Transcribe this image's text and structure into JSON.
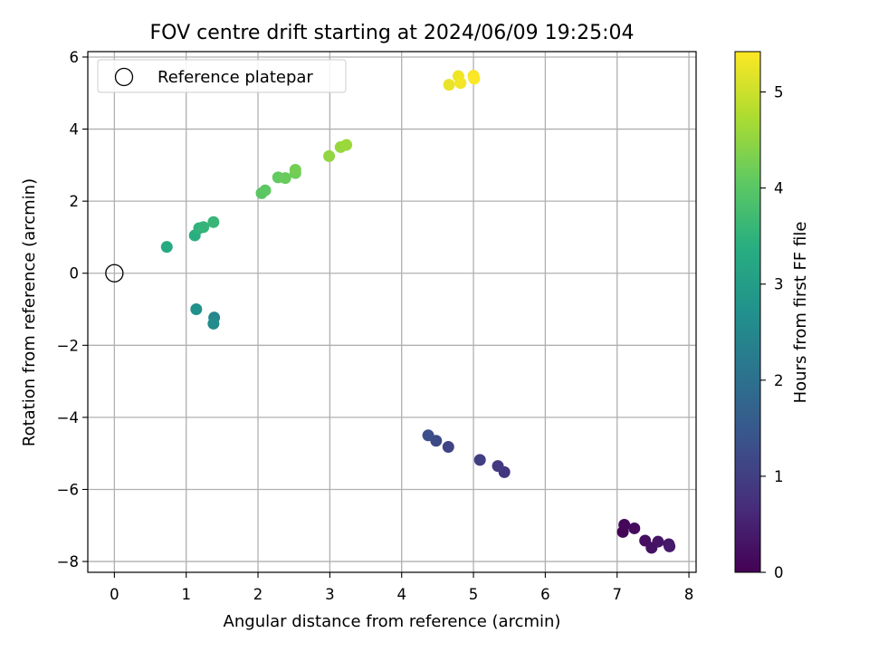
{
  "chart_data": {
    "type": "scatter",
    "title": "FOV centre drift starting at 2024/06/09 19:25:04",
    "xlabel": "Angular distance from reference (arcmin)",
    "ylabel": "Rotation from reference (arcmin)",
    "xlim": [
      -0.37,
      8.1
    ],
    "ylim": [
      -8.3,
      6.15
    ],
    "xticks": [
      0,
      1,
      2,
      3,
      4,
      5,
      6,
      7,
      8
    ],
    "yticks": [
      -8,
      -6,
      -4,
      -2,
      0,
      2,
      4,
      6
    ],
    "xtick_labels": [
      "0",
      "1",
      "2",
      "3",
      "4",
      "5",
      "6",
      "7",
      "8"
    ],
    "ytick_labels": [
      "−8",
      "−6",
      "−4",
      "−2",
      "0",
      "2",
      "4",
      "6"
    ],
    "grid": true,
    "legend": {
      "position": "top-left",
      "label": "Reference platepar"
    },
    "reference_point": {
      "x": 0,
      "y": 0
    },
    "colorbar": {
      "label": "Hours from first FF file",
      "range": [
        0,
        5.42
      ],
      "ticks": [
        0,
        1,
        2,
        3,
        4,
        5
      ],
      "tick_labels": [
        "0",
        "1",
        "2",
        "3",
        "4",
        "5"
      ],
      "colormap": "viridis"
    },
    "points": [
      {
        "x": 7.08,
        "y": -7.18,
        "c": 0.05
      },
      {
        "x": 7.1,
        "y": -6.98,
        "c": 0.1
      },
      {
        "x": 7.24,
        "y": -7.08,
        "c": 0.15
      },
      {
        "x": 7.39,
        "y": -7.42,
        "c": 0.2
      },
      {
        "x": 7.48,
        "y": -7.62,
        "c": 0.25
      },
      {
        "x": 7.57,
        "y": -7.45,
        "c": 0.3
      },
      {
        "x": 7.72,
        "y": -7.52,
        "c": 0.35
      },
      {
        "x": 7.73,
        "y": -7.58,
        "c": 0.4
      },
      {
        "x": 5.43,
        "y": -5.52,
        "c": 0.85
      },
      {
        "x": 5.34,
        "y": -5.35,
        "c": 0.9
      },
      {
        "x": 5.09,
        "y": -5.18,
        "c": 1.0
      },
      {
        "x": 4.65,
        "y": -4.82,
        "c": 1.1
      },
      {
        "x": 4.48,
        "y": -4.65,
        "c": 1.2
      },
      {
        "x": 4.37,
        "y": -4.5,
        "c": 1.3
      },
      {
        "x": 1.39,
        "y": -1.23,
        "c": 2.5
      },
      {
        "x": 1.38,
        "y": -1.4,
        "c": 2.6
      },
      {
        "x": 1.14,
        "y": -1.0,
        "c": 2.7
      },
      {
        "x": 0.73,
        "y": 0.73,
        "c": 3.3
      },
      {
        "x": 1.12,
        "y": 1.05,
        "c": 3.4
      },
      {
        "x": 1.18,
        "y": 1.25,
        "c": 3.5
      },
      {
        "x": 1.24,
        "y": 1.28,
        "c": 3.55
      },
      {
        "x": 1.38,
        "y": 1.42,
        "c": 3.6
      },
      {
        "x": 2.05,
        "y": 2.22,
        "c": 4.0
      },
      {
        "x": 2.1,
        "y": 2.3,
        "c": 4.05
      },
      {
        "x": 2.28,
        "y": 2.66,
        "c": 4.1
      },
      {
        "x": 2.38,
        "y": 2.64,
        "c": 4.15
      },
      {
        "x": 2.52,
        "y": 2.78,
        "c": 4.2
      },
      {
        "x": 2.52,
        "y": 2.87,
        "c": 4.25
      },
      {
        "x": 2.99,
        "y": 3.25,
        "c": 4.5
      },
      {
        "x": 3.15,
        "y": 3.5,
        "c": 4.55
      },
      {
        "x": 3.23,
        "y": 3.56,
        "c": 4.6
      },
      {
        "x": 4.66,
        "y": 5.23,
        "c": 5.25
      },
      {
        "x": 4.79,
        "y": 5.47,
        "c": 5.3
      },
      {
        "x": 4.82,
        "y": 5.28,
        "c": 5.33
      },
      {
        "x": 5.0,
        "y": 5.48,
        "c": 5.37
      },
      {
        "x": 5.01,
        "y": 5.4,
        "c": 5.4
      }
    ]
  }
}
